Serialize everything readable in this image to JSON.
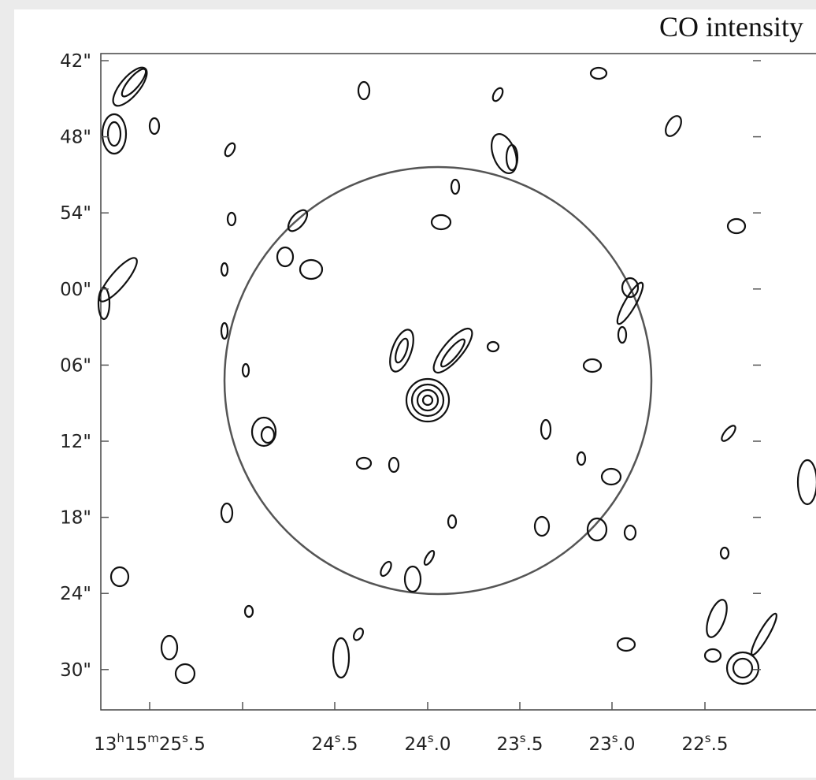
{
  "title": "CO intensity",
  "y_axis": {
    "ticks": [
      "42\"",
      "48\"",
      "54\"",
      "00\"",
      "06\"",
      "12\"",
      "18\"",
      "24\"",
      "30\""
    ]
  },
  "x_axis": {
    "ticks": [
      [
        "13",
        "h",
        "15",
        "m",
        "25",
        "s",
        ".5"
      ],
      [
        "24",
        "s",
        ".5"
      ],
      [
        "24",
        "s",
        ".0"
      ],
      [
        "23",
        "s",
        ".5"
      ],
      [
        "23",
        "s",
        ".0"
      ],
      [
        "22",
        "s",
        ".5"
      ]
    ]
  }
}
